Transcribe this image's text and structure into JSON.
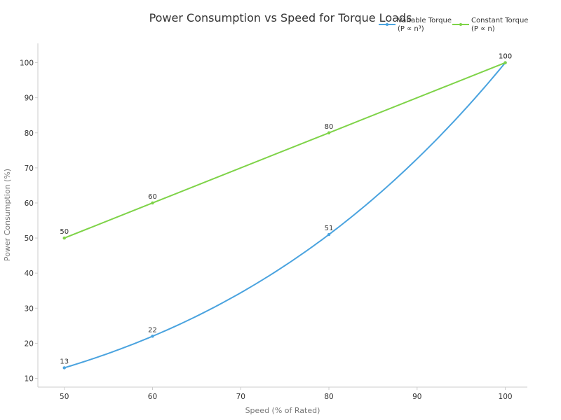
{
  "chart_data": {
    "type": "line",
    "title": "Power Consumption vs Speed for Torque Loads",
    "xlabel": "Speed (% of Rated)",
    "ylabel": "Power Consumption (%)",
    "xlim": [
      47,
      102.5
    ],
    "ylim": [
      7.5,
      105.5
    ],
    "x_ticks": [
      50,
      60,
      70,
      80,
      90,
      100
    ],
    "y_ticks": [
      10,
      20,
      30,
      40,
      50,
      60,
      70,
      80,
      90,
      100
    ],
    "grid": false,
    "legend_position": "top-right",
    "series": [
      {
        "name_line1": "Variable Torque",
        "name_line2": "(P ∝ n³)",
        "color": "#4aa3df",
        "curve": "cubic",
        "points": [
          {
            "x": 50,
            "y": 13,
            "label": "13"
          },
          {
            "x": 60,
            "y": 22,
            "label": "22"
          },
          {
            "x": 80,
            "y": 51,
            "label": "51"
          },
          {
            "x": 100,
            "y": 100,
            "label": "100"
          }
        ]
      },
      {
        "name_line1": "Constant Torque",
        "name_line2": "(P ∝ n)",
        "color": "#7ed348",
        "curve": "linear",
        "points": [
          {
            "x": 50,
            "y": 50,
            "label": "50"
          },
          {
            "x": 60,
            "y": 60,
            "label": "60"
          },
          {
            "x": 80,
            "y": 80,
            "label": "80"
          },
          {
            "x": 100,
            "y": 100,
            "label": "100"
          }
        ]
      }
    ]
  }
}
